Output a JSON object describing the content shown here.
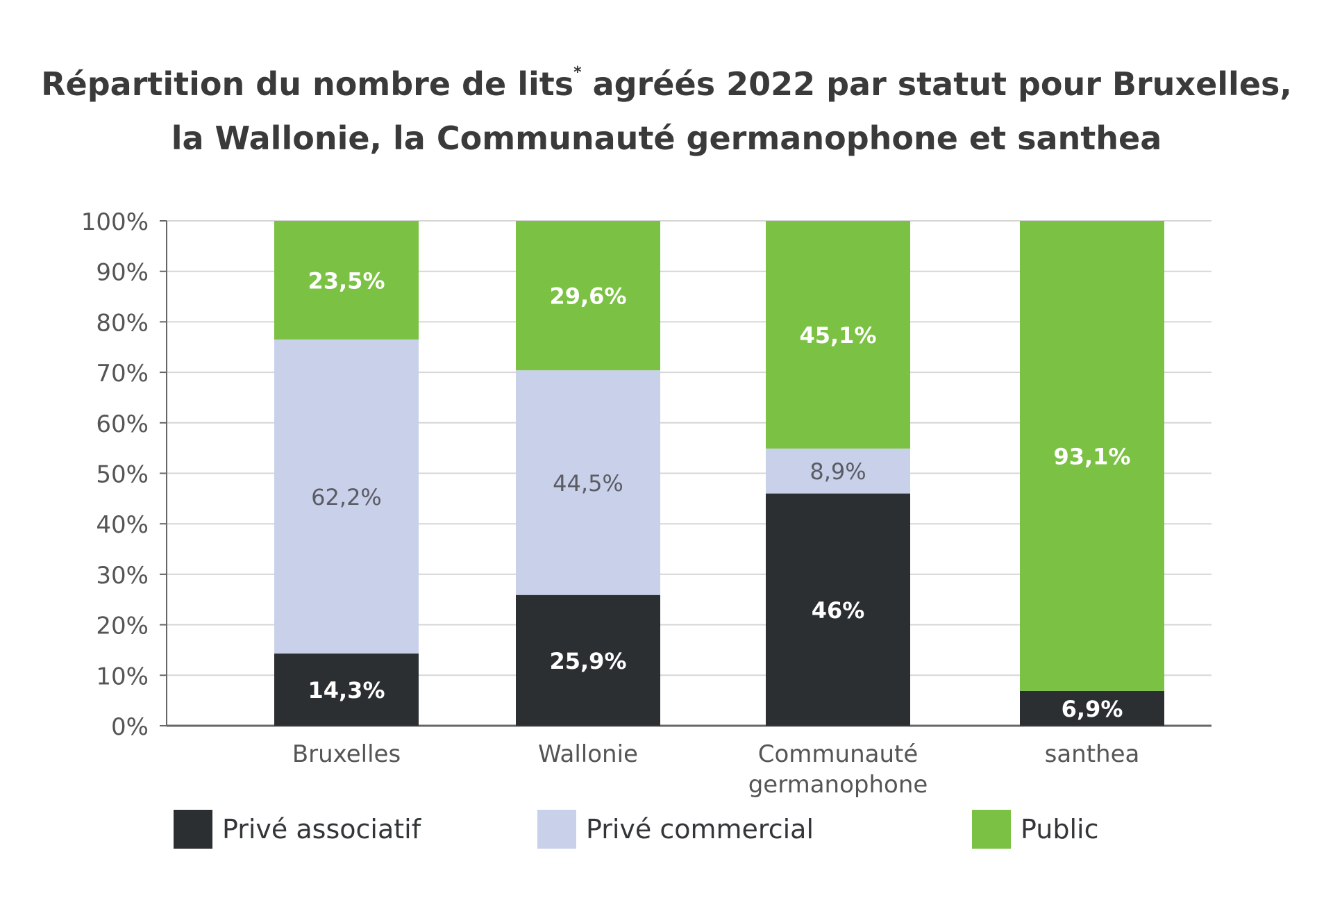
{
  "title_line1": "Répartition du nombre de lits",
  "title_mark": "*",
  "title_line1_rest": "agréés 2022 par statut pour Bruxelles,",
  "title_line2": "la Wallonie, la Communauté germanophone et santhea",
  "colors": {
    "prive_associatif": "#2c2f32",
    "prive_commercial": "#c9d0ea",
    "public": "#7bc144",
    "grid": "#d6d6d6",
    "axis": "#666666",
    "tick_text": "#555555"
  },
  "chart_data": {
    "type": "bar",
    "stacked": true,
    "title": "Répartition du nombre de lits* agréés 2022 par statut pour Bruxelles, la Wallonie, la Communauté germanophone et santhea",
    "categories": [
      [
        "Bruxelles"
      ],
      [
        "Wallonie"
      ],
      [
        "Communauté",
        "germanophone"
      ],
      [
        "santhea"
      ]
    ],
    "series": [
      {
        "name": "Privé associatif",
        "color": "#2c2f32",
        "label_color": "#ffffff",
        "values": [
          14.3,
          25.9,
          46,
          6.9
        ],
        "labels": [
          "14,3%",
          "25,9%",
          "46%",
          "6,9%"
        ]
      },
      {
        "name": "Privé commercial",
        "color": "#c9d0ea",
        "label_color": "#5a5c64",
        "values": [
          62.2,
          44.5,
          8.9,
          0
        ],
        "labels": [
          "62,2%",
          "44,5%",
          "8,9%",
          ""
        ]
      },
      {
        "name": "Public",
        "color": "#7bc144",
        "label_color": "#ffffff",
        "values": [
          23.5,
          29.6,
          45.1,
          93.1
        ],
        "labels": [
          "23,5%",
          "29,6%",
          "45,1%",
          "93,1%"
        ]
      }
    ],
    "ylim": [
      0,
      100
    ],
    "yticks": [
      0,
      10,
      20,
      30,
      40,
      50,
      60,
      70,
      80,
      90,
      100
    ],
    "ytick_labels": [
      "0%",
      "10%",
      "20%",
      "30%",
      "40%",
      "50%",
      "60%",
      "70%",
      "80%",
      "90%",
      "100%"
    ],
    "grid": true,
    "legend": "bottom"
  }
}
